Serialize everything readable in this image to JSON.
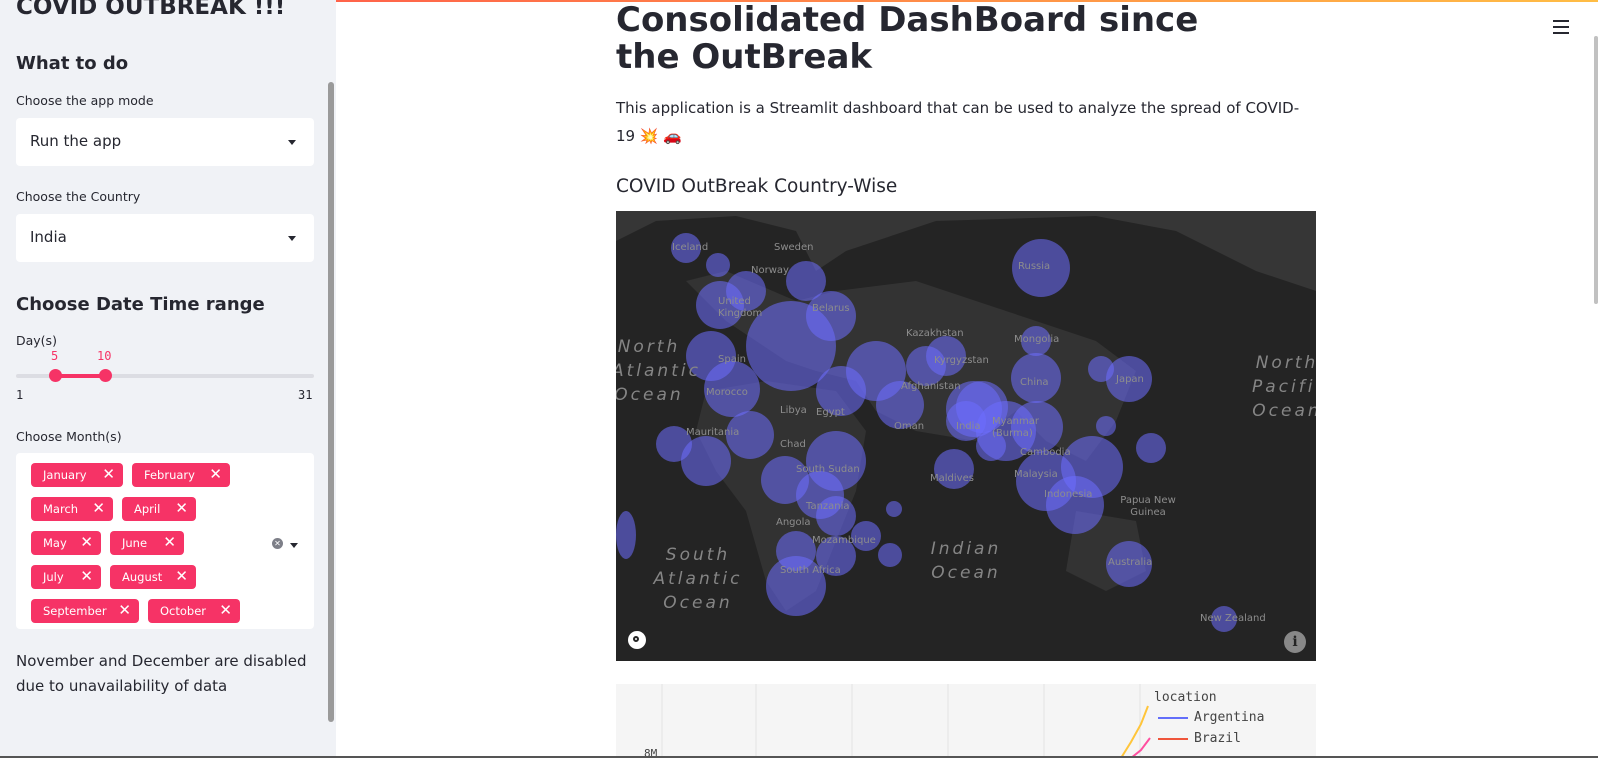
{
  "sidebar": {
    "app_title": "COVID OUTBREAK !!!",
    "what_to_do_heading": "What to do",
    "app_mode": {
      "label": "Choose the app mode",
      "value": "Run the app"
    },
    "country": {
      "label": "Choose the Country",
      "value": "India"
    },
    "date_heading": "Choose Date Time range",
    "days": {
      "label": "Day(s)",
      "min": "1",
      "max": "31",
      "low": "5",
      "high": "10"
    },
    "months": {
      "label": "Choose Month(s)",
      "selected": [
        "January",
        "February",
        "March",
        "April",
        "May",
        "June",
        "July",
        "August",
        "September",
        "October"
      ]
    },
    "note": "November and December are disabled due to unavailability of data"
  },
  "main": {
    "title": "Consolidated DashBoard since the OutBreak",
    "description": "This application is a Streamlit dashboard that can be used to analyze the spread of COVID-19 💥 🚗",
    "map_section_title": "COVID OutBreak Country-Wise",
    "map": {
      "labels": [
        "Iceland",
        "Sweden",
        "Norway",
        "Russia",
        "United Kingdom",
        "Belarus",
        "Kazakhstan",
        "Mongolia",
        "Kyrgyzstan",
        "Spain",
        "Afghanistan",
        "China",
        "Japan",
        "Morocco",
        "Libya",
        "Egypt",
        "Oman",
        "India",
        "Myanmar (Burma)",
        "Mauritania",
        "Chad",
        "Cambodia",
        "South Sudan",
        "Malaysia",
        "Maldives",
        "Indonesia",
        "Papua New Guinea",
        "Tanzania",
        "Angola",
        "Mozambique",
        "South Africa",
        "Australia",
        "New Zealand"
      ],
      "oceans": [
        "North Atlantic Ocean",
        "North Pacific Ocean",
        "South Atlantic Ocean",
        "Indian Ocean"
      ],
      "bubble_color": "#6e6eff",
      "background_color": "#242424"
    },
    "chart_legend": {
      "title": "location",
      "items": [
        {
          "name": "Argentina",
          "color": "#636efa"
        },
        {
          "name": "Brazil",
          "color": "#ef553b"
        }
      ]
    },
    "chart_ytick": "8M"
  },
  "theme": {
    "accent": "#f63366",
    "sidebar_bg": "#f0f2f6"
  }
}
